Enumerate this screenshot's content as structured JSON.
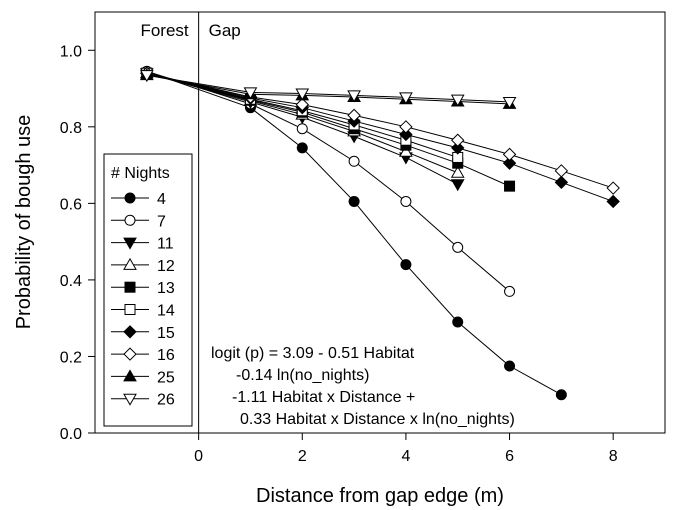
{
  "chart_data": {
    "type": "line",
    "title": "",
    "xlabel": "Distance from gap edge (m)",
    "ylabel": "Probability of bough use",
    "xlim": [
      -2,
      9
    ],
    "ylim": [
      0,
      1.1
    ],
    "xticks": [
      0,
      2,
      4,
      6,
      8
    ],
    "yticks": [
      0.0,
      0.2,
      0.4,
      0.6,
      0.8,
      1.0
    ],
    "ytick_labels": [
      "0.0",
      "0.2",
      "0.4",
      "0.6",
      "0.8",
      "1.0"
    ],
    "regions": [
      {
        "label": "Forest",
        "x_start": -2,
        "x_end": 0
      },
      {
        "label": "Gap",
        "x_start": 0,
        "x_end": 9
      }
    ],
    "legend": {
      "title": "# Nights",
      "position": "left"
    },
    "equation": [
      "logit (p) = 3.09 - 0.51 Habitat",
      "-0.14 ln(no_nights)",
      "-1.11 Habitat x Distance +",
      "0.33 Habitat x Distance x ln(no_nights)"
    ],
    "series": [
      {
        "name": "4",
        "marker": "circle",
        "fill": "black",
        "x": [
          -1,
          1,
          2,
          3,
          4,
          5,
          6,
          7
        ],
        "y": [
          0.945,
          0.85,
          0.745,
          0.605,
          0.44,
          0.29,
          0.175,
          0.1
        ]
      },
      {
        "name": "7",
        "marker": "circle",
        "fill": "white",
        "x": [
          -1,
          1,
          2,
          3,
          4,
          5,
          6
        ],
        "y": [
          0.945,
          0.86,
          0.795,
          0.71,
          0.605,
          0.485,
          0.37
        ]
      },
      {
        "name": "11",
        "marker": "triangle-down",
        "fill": "black",
        "x": [
          -1,
          1,
          2,
          3,
          4,
          5
        ],
        "y": [
          0.94,
          0.865,
          0.825,
          0.775,
          0.72,
          0.65
        ]
      },
      {
        "name": "12",
        "marker": "triangle-up",
        "fill": "white",
        "x": [
          -1,
          1,
          2,
          3,
          4,
          5
        ],
        "y": [
          0.94,
          0.868,
          0.832,
          0.788,
          0.735,
          0.68
        ]
      },
      {
        "name": "13",
        "marker": "square",
        "fill": "black",
        "x": [
          -1,
          1,
          2,
          3,
          4,
          5,
          6
        ],
        "y": [
          0.94,
          0.87,
          0.838,
          0.795,
          0.752,
          0.705,
          0.645
        ]
      },
      {
        "name": "14",
        "marker": "square",
        "fill": "white",
        "x": [
          -1,
          1,
          2,
          3,
          4,
          5
        ],
        "y": [
          0.94,
          0.872,
          0.842,
          0.805,
          0.765,
          0.72
        ]
      },
      {
        "name": "15",
        "marker": "diamond",
        "fill": "black",
        "x": [
          -1,
          1,
          2,
          3,
          4,
          5,
          6,
          7,
          8
        ],
        "y": [
          0.94,
          0.875,
          0.85,
          0.815,
          0.78,
          0.745,
          0.705,
          0.655,
          0.605
        ]
      },
      {
        "name": "16",
        "marker": "diamond",
        "fill": "white",
        "x": [
          -1,
          1,
          2,
          3,
          4,
          5,
          6,
          7,
          8
        ],
        "y": [
          0.94,
          0.878,
          0.858,
          0.83,
          0.8,
          0.765,
          0.728,
          0.685,
          0.64
        ]
      },
      {
        "name": "25",
        "marker": "triangle-up",
        "fill": "black",
        "x": [
          -1,
          1,
          2,
          3,
          4,
          5,
          6
        ],
        "y": [
          0.935,
          0.885,
          0.882,
          0.878,
          0.872,
          0.866,
          0.86
        ]
      },
      {
        "name": "26",
        "marker": "triangle-down",
        "fill": "white",
        "x": [
          -1,
          1,
          2,
          3,
          4,
          5,
          6
        ],
        "y": [
          0.935,
          0.89,
          0.887,
          0.882,
          0.877,
          0.871,
          0.865
        ]
      }
    ]
  }
}
